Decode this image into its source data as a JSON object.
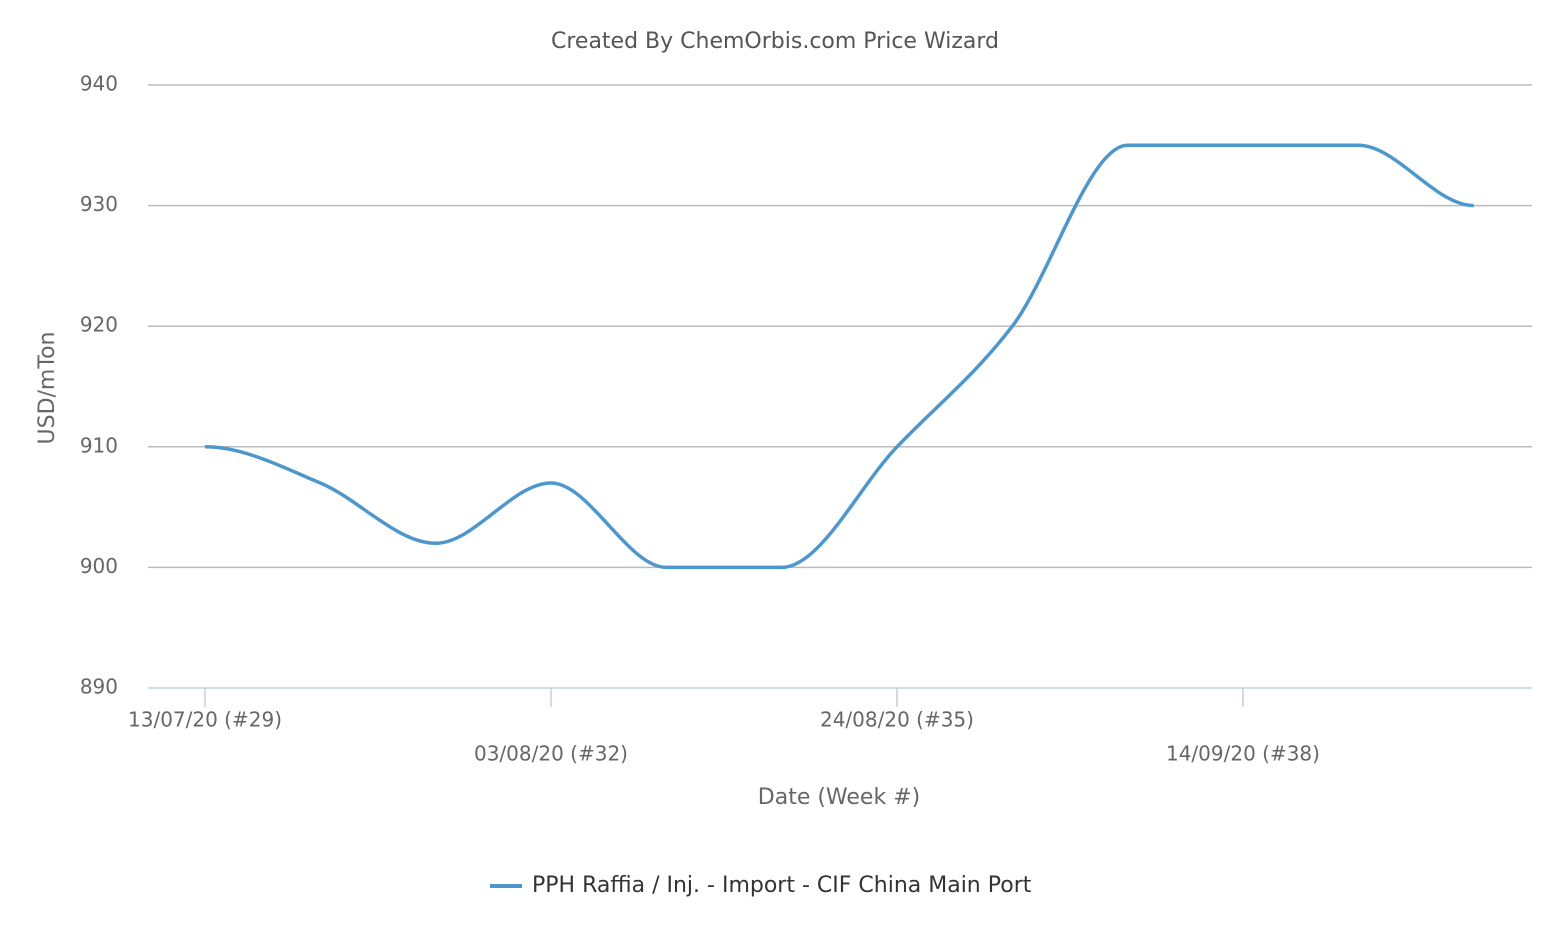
{
  "chart_data": {
    "type": "line",
    "title": "Created By ChemOrbis.com Price Wizard",
    "x_label": "Date (Week #)",
    "y_label": "USD/mTon",
    "categories": [
      "13/07/20 (#29)",
      null,
      null,
      "03/08/20 (#32)",
      null,
      null,
      "24/08/20 (#35)",
      null,
      null,
      "14/09/20 (#38)",
      null,
      null
    ],
    "series": [
      {
        "name": "PPH Raffia / Inj. - Import - CIF China Main Port",
        "color": "#4d97cd",
        "values": [
          910,
          907,
          902,
          907,
          900,
          900,
          910,
          920,
          935,
          935,
          935,
          930
        ]
      }
    ],
    "ylim": [
      890,
      940
    ],
    "yticks": [
      890,
      900,
      910,
      920,
      930,
      940
    ],
    "grid": true,
    "legend": "bottom"
  }
}
